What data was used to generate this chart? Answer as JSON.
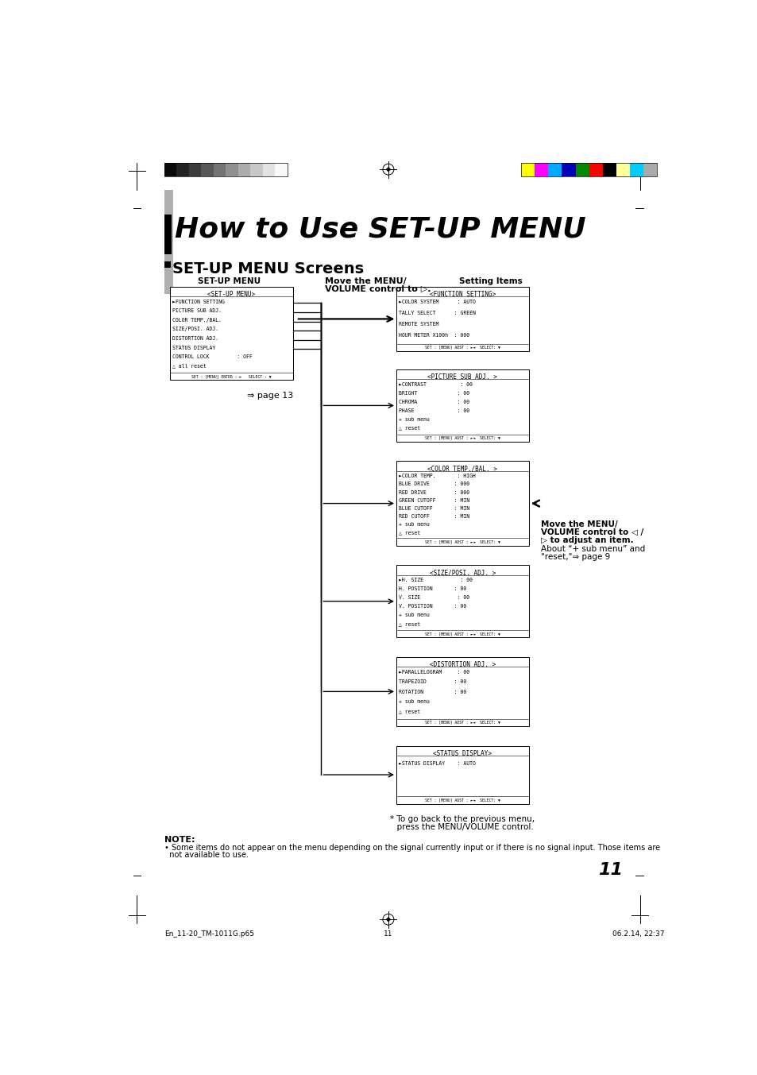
{
  "bg_color": "#ffffff",
  "title": "How to Use SET-UP MENU",
  "subtitle": "SET-UP MENU Screens",
  "setup_menu_label": "SET-UP MENU",
  "setting_items_label": "Setting Items",
  "move_top_1": "Move the MENU/",
  "move_top_2": "VOLUME control to ▷.",
  "page13_label": "⇒ page 13",
  "move_right_1": "Move the MENU/",
  "move_right_2": "VOLUME control to ◁ /",
  "move_right_3": "▷ to adjust an item.",
  "move_right_4": "About “+ sub menu” and",
  "move_right_5": "\"reset,\"⇒ page 9",
  "footnote_1": "* To go back to the previous menu,",
  "footnote_2": "  press the MENU/VOLUME control.",
  "note_title": "NOTE:",
  "note_line1": "• Some items do not appear on the menu depending on the signal currently input or if there is no signal input. Those items are",
  "note_line2": "  not available to use.",
  "footer_left": "En_11-20_TM-1011G.p65",
  "footer_center": "11",
  "footer_right": "06.2.14, 22:37",
  "page_number": "11",
  "grayscale_colors": [
    "#0a0a0a",
    "#222222",
    "#3c3c3c",
    "#585858",
    "#747474",
    "#909090",
    "#acacac",
    "#c8c8c8",
    "#e2e2e2",
    "#f8f8f8"
  ],
  "color_bar_colors": [
    "#ffff00",
    "#ff00ff",
    "#00aaff",
    "#0000bb",
    "#008800",
    "#ff0000",
    "#000000",
    "#ffff99",
    "#00ccff",
    "#aaaaaa"
  ],
  "setup_menu_box": {
    "title": "<SET-UP MENU>",
    "lines": [
      "►FUNCTION SETTING",
      "PICTURE SUB ADJ.",
      "COLOR TEMP./BAL.",
      "SIZE/POSI. ADJ.",
      "DISTORTION ADJ.",
      "STATUS DISPLAY",
      "CONTROL LOCK         : OFF",
      "△ all reset"
    ],
    "footer": "SET : [MENU] ENTER : ►   SELECT : ▼"
  },
  "function_setting_box": {
    "title": "<FUNCTION SETTING>",
    "lines": [
      "►COLOR SYSTEM      : AUTO",
      "TALLY SELECT      : GREEN",
      "REMOTE SYSTEM",
      "HOUR METER X100h  : 000"
    ],
    "footer": "SET : [MENU] ADST : ►◄  SELECT: ▼"
  },
  "picture_sub_box": {
    "title": "<PICTURE SUB ADJ. >",
    "lines": [
      "►CONTRAST           : 00",
      "BRIGHT             : 00",
      "CHROMA             : 00",
      "PHASE              : 00",
      "+ sub menu",
      "△ reset"
    ],
    "footer": "SET : [MENU] ADST : ►◄  SELECT: ▼"
  },
  "color_temp_box": {
    "title": "<COLOR TEMP./BAL. >",
    "lines": [
      "►COLOR TEMP.       : HIGH",
      "BLUE DRIVE        : 000",
      "RED DRIVE         : 000",
      "GREEN CUTOFF      : MIN",
      "BLUE CUTOFF       : MIN",
      "RED CUTOFF        : MIN",
      "+ sub menu",
      "△ reset"
    ],
    "footer": "SET : [MENU] ADST : ►◄  SELECT: ▼"
  },
  "size_posi_box": {
    "title": "<SIZE/POSI. ADJ. >",
    "lines": [
      "►H. SIZE            : 00",
      "H. POSITION       : 00",
      "V. SIZE            : 00",
      "V. POSITION       : 00",
      "+ sub menu",
      "△ reset"
    ],
    "footer": "SET : [MENU] ADST : ►◄  SELECT: ▼"
  },
  "distortion_box": {
    "title": "<DISTORTION ADJ. >",
    "lines": [
      "►PARALLELOGRAM     : 00",
      "TRAPEZOID         : 00",
      "ROTATION          : 00",
      "+ sub menu",
      "△ reset"
    ],
    "footer": "SET : [MENU] ADST : ►◄  SELECT: ▼"
  },
  "status_display_box": {
    "title": "<STATUS DISPLAY>",
    "lines": [
      "►STATUS DISPLAY    : AUTO"
    ],
    "footer": "SET : [MENU] ADST : ►◄  SELECT: ▼"
  }
}
